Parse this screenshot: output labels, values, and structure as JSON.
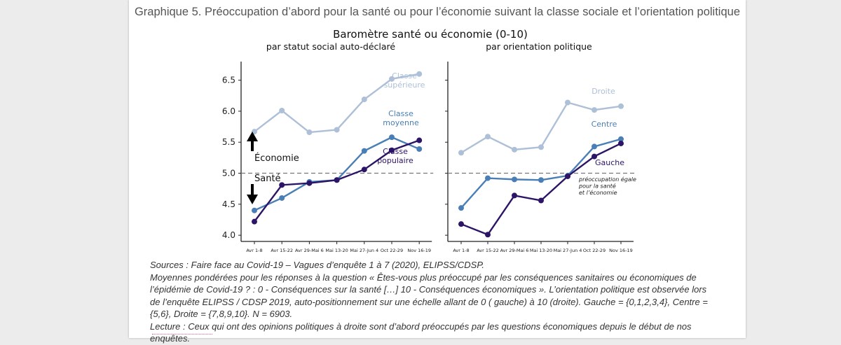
{
  "figure_title": "Graphique 5. Préoccupation d’abord pour la santé ou pour l’économie suivant la classe sociale et l’orientation politique",
  "colors": {
    "superieure": "#aebfd8",
    "moyenne": "#4a7fb5",
    "populaire": "#2c1466",
    "droite": "#aebfd8",
    "centre": "#4a7fb5",
    "gauche": "#2c1466",
    "reference_line": "#777777"
  },
  "chart_data": [
    {
      "type": "line",
      "suptitle": "Baromètre santé ou économie (0-10)",
      "title": "par statut social auto-déclaré",
      "categories": [
        "Avr 1-8",
        "Avr 15-22",
        "Avr 29-Mai 6",
        "Mai 13-20",
        "Mai 27-Jun 4",
        "Oct 22-29",
        "Nov 16-19"
      ],
      "ylim": [
        3.9,
        6.8
      ],
      "yticks": [
        "4.0",
        "4.5",
        "5.0",
        "5.5",
        "6.0",
        "6.5"
      ],
      "reference_y": 5.0,
      "series": [
        {
          "name": "Classe supérieure",
          "label_lines": [
            "Classe",
            "supérieure"
          ],
          "color_key": "superieure",
          "values": [
            5.67,
            6.01,
            5.66,
            5.7,
            6.19,
            6.52,
            6.6
          ]
        },
        {
          "name": "Classe moyenne",
          "label_lines": [
            "Classe",
            "moyenne"
          ],
          "color_key": "moyenne",
          "values": [
            4.4,
            4.6,
            4.86,
            4.89,
            5.36,
            5.58,
            5.39
          ]
        },
        {
          "name": "Classe populaire",
          "label_lines": [
            "Classe",
            "populaire"
          ],
          "color_key": "populaire",
          "values": [
            4.22,
            4.81,
            4.84,
            4.89,
            5.06,
            5.37,
            5.53
          ]
        }
      ],
      "annotations": {
        "up": "Économie",
        "down": "Santé"
      }
    },
    {
      "type": "line",
      "title": "par orientation politique",
      "categories": [
        "Avr 1-8",
        "Avr 15-22",
        "Avr 29-Mai 6",
        "Mai 13-20",
        "Mai 27-Jun 4",
        "Oct 22-29",
        "Nov 16-19"
      ],
      "ylim": [
        3.9,
        6.8
      ],
      "reference_y": 5.0,
      "series": [
        {
          "name": "Droite",
          "label_lines": [
            "Droite"
          ],
          "color_key": "droite",
          "values": [
            5.33,
            5.59,
            5.38,
            5.42,
            6.14,
            6.02,
            6.08
          ]
        },
        {
          "name": "Centre",
          "label_lines": [
            "Centre"
          ],
          "color_key": "centre",
          "values": [
            4.44,
            4.92,
            4.9,
            4.89,
            4.96,
            5.43,
            5.55
          ]
        },
        {
          "name": "Gauche",
          "label_lines": [
            "Gauche"
          ],
          "color_key": "gauche",
          "values": [
            4.18,
            4.01,
            4.64,
            4.56,
            4.95,
            5.27,
            5.48
          ]
        }
      ],
      "annotations": {
        "reference": [
          "préoccupation égale",
          "pour la santé",
          "et l’économie"
        ]
      }
    }
  ],
  "notes": {
    "sources": "Sources : Faire face au Covid-19 – Vagues d’enquête 1 à 7 (2020), ELIPSS/CDSP.",
    "methodology": "Moyennes pondérées pour les réponses à la question « Êtes-vous plus préoccupé par les conséquences sanitaires ou économiques de l’épidémie de Covid-19 ? : 0 - Conséquences sur la santé […] 10 - Conséquences économiques ». L’orientation politique est observée lors de l’enquête ELIPSS / CDSP 2019, auto-positionnement sur une échelle allant de 0 ( gauche) à 10 (droite). Gauche = {0,1,2,3,4}, Centre = {5,6}, Droite = {7,8,9,10}. N = 6903.",
    "lecture": "Lecture : Ceux qui ont des opinions politiques à droite sont d’abord préoccupés par les questions économiques depuis le début de nos enquêtes."
  }
}
